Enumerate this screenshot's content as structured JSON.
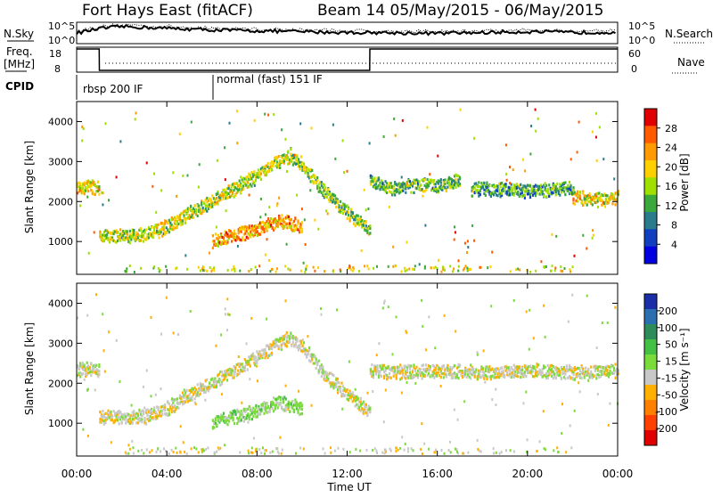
{
  "header": {
    "title": "Fort Hays East (fitACF)",
    "beam": "Beam 14 05/May/2015 - 06/May/2015"
  },
  "strip": {
    "nsky_label": "N.Sky",
    "nsearch_label": "N.Search",
    "noise_tick_top": "10^5",
    "noise_tick_bottom": "10^0",
    "freq_label_line1": "Freq.",
    "freq_label_line2": "[MHz]",
    "freq_ticks": [
      "18",
      "8"
    ],
    "nave_label": "Nave",
    "nave_ticks": [
      "60",
      "0"
    ],
    "cpid_label": "CPID",
    "cpid_segments": [
      {
        "label": "rbsp 200 IF",
        "start_hour": 0,
        "end_hour": 6
      },
      {
        "label": "normal (fast) 151 IF",
        "start_hour": 6,
        "end_hour": 24
      }
    ]
  },
  "power_colorbar": {
    "title": "Power [dB]",
    "ticks": [
      "28",
      "24",
      "20",
      "16",
      "12",
      "8",
      "4"
    ],
    "colors": [
      "#e00000",
      "#ff5a00",
      "#ff9a00",
      "#ffd000",
      "#a0e000",
      "#3aa83a",
      "#2a7c8c",
      "#1040c0",
      "#0000e0"
    ]
  },
  "velocity_colorbar": {
    "title": "Velocity [m s⁻¹]",
    "ticks": [
      "200",
      "100",
      "50",
      "15",
      "-15",
      "-50",
      "-100",
      "-200"
    ],
    "colors": [
      "#1a2ea8",
      "#2a70b0",
      "#2e8c5a",
      "#44c044",
      "#7adc3a",
      "#c8c8c8",
      "#ffb000",
      "#ff8000",
      "#ff4000",
      "#e00000"
    ]
  },
  "axes": {
    "ylabel": "Slant Range [km]",
    "yticks": [
      "4000",
      "3000",
      "2000",
      "1000"
    ],
    "xticks": [
      "00:00",
      "04:00",
      "08:00",
      "12:00",
      "16:00",
      "20:00",
      "00:00"
    ],
    "xlabel": "Time UT"
  },
  "chart_data": [
    {
      "type": "line",
      "name": "noise-strip",
      "x_hours": [
        0,
        1,
        2,
        4,
        6,
        8,
        10,
        12,
        13,
        16,
        18,
        20,
        22,
        24
      ],
      "series": [
        {
          "name": "N.Sky",
          "values_log10": [
            2.5,
            3.5,
            4.0,
            3.6,
            3.2,
            3.0,
            2.8,
            2.6,
            2.6,
            2.4,
            2.6,
            2.8,
            2.6,
            2.7
          ]
        }
      ],
      "ylim": [
        0,
        5
      ]
    },
    {
      "type": "line",
      "name": "frequency-strip",
      "x_hours": [
        0,
        1,
        1.01,
        6,
        13,
        13.01,
        24
      ],
      "series": [
        {
          "name": "Freq.",
          "values": [
            18,
            18,
            8,
            8,
            8,
            18,
            18
          ]
        }
      ],
      "ylim": [
        8,
        18
      ]
    },
    {
      "type": "heatmap",
      "name": "power-panel",
      "xlim_hours": [
        0,
        24
      ],
      "ylim_km": [
        180,
        4500
      ],
      "colorbar": "Power [dB]",
      "bands": [
        {
          "t": [
            0,
            0.5,
            1
          ],
          "r": [
            2300,
            2350,
            2300
          ],
          "value": 20
        },
        {
          "t": [
            1,
            2,
            3,
            4,
            5,
            6,
            7,
            8,
            9,
            9.5
          ],
          "r": [
            1150,
            1120,
            1150,
            1350,
            1700,
            2000,
            2300,
            2650,
            3000,
            3150
          ],
          "value": 18
        },
        {
          "t": [
            9.5,
            10,
            11,
            12,
            13
          ],
          "r": [
            3100,
            2900,
            2200,
            1700,
            1250
          ],
          "value": 16
        },
        {
          "t": [
            13,
            14,
            15,
            16,
            17
          ],
          "r": [
            2500,
            2300,
            2400,
            2400,
            2500
          ],
          "value": 14
        },
        {
          "t": [
            17.5,
            18,
            20,
            22
          ],
          "r": [
            2300,
            2300,
            2250,
            2300
          ],
          "value": 12
        },
        {
          "t": [
            22,
            23,
            24
          ],
          "r": [
            2100,
            2050,
            2100
          ],
          "value": 20
        },
        {
          "t": [
            6,
            7,
            8,
            9,
            10
          ],
          "r": [
            1000,
            1150,
            1300,
            1500,
            1350
          ],
          "value": 24
        }
      ]
    },
    {
      "type": "heatmap",
      "name": "velocity-panel",
      "xlim_hours": [
        0,
        24
      ],
      "ylim_km": [
        180,
        4500
      ],
      "colorbar": "Velocity [m s⁻¹]",
      "bands": [
        {
          "t": [
            0,
            0.5,
            1
          ],
          "r": [
            2300,
            2350,
            2300
          ],
          "value": 0
        },
        {
          "t": [
            1,
            2,
            3,
            4,
            5,
            6,
            7,
            8,
            9,
            9.5
          ],
          "r": [
            1150,
            1120,
            1150,
            1350,
            1700,
            2000,
            2300,
            2650,
            3000,
            3150
          ],
          "value": 0
        },
        {
          "t": [
            9.5,
            10,
            11,
            12,
            13
          ],
          "r": [
            3100,
            2900,
            2200,
            1700,
            1250
          ],
          "value": 0
        },
        {
          "t": [
            13,
            14,
            16,
            18,
            20,
            22,
            24
          ],
          "r": [
            2300,
            2250,
            2300,
            2250,
            2300,
            2250,
            2300
          ],
          "value": 0
        },
        {
          "t": [
            6,
            7,
            8,
            9,
            10
          ],
          "r": [
            1000,
            1150,
            1300,
            1500,
            1350
          ],
          "value": 30
        }
      ]
    }
  ]
}
